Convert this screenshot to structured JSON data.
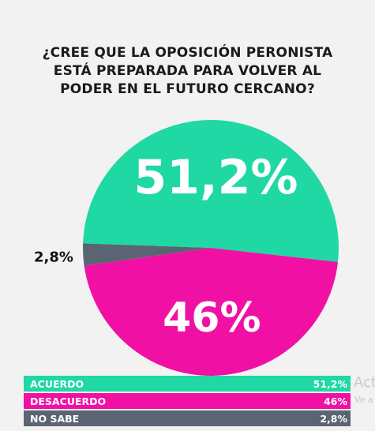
{
  "title_lines": [
    "¿CREE QUE LA OPOSICIÓN PERONISTA",
    "ESTÁ PREPARADA PARA VOLVER AL",
    "PODER EN EL FUTURO CERCANO?"
  ],
  "chart_data": {
    "type": "pie",
    "title": "¿CREE QUE LA OPOSICIÓN PERONISTA ESTÁ PREPARADA PARA VOLVER AL PODER EN EL FUTURO CERCANO?",
    "slices": [
      {
        "label": "ACUERDO",
        "value": 51.2,
        "display": "51,2%",
        "color": "#1fd8a4"
      },
      {
        "label": "DESACUERDO",
        "value": 46,
        "display": "46%",
        "color": "#f011a4"
      },
      {
        "label": "NO SABE",
        "value": 2.8,
        "display": "2,8%",
        "color": "#5b6473"
      }
    ],
    "legend_placement": "bottom"
  },
  "watermark": {
    "main": "Act",
    "sub": "Ve a"
  }
}
